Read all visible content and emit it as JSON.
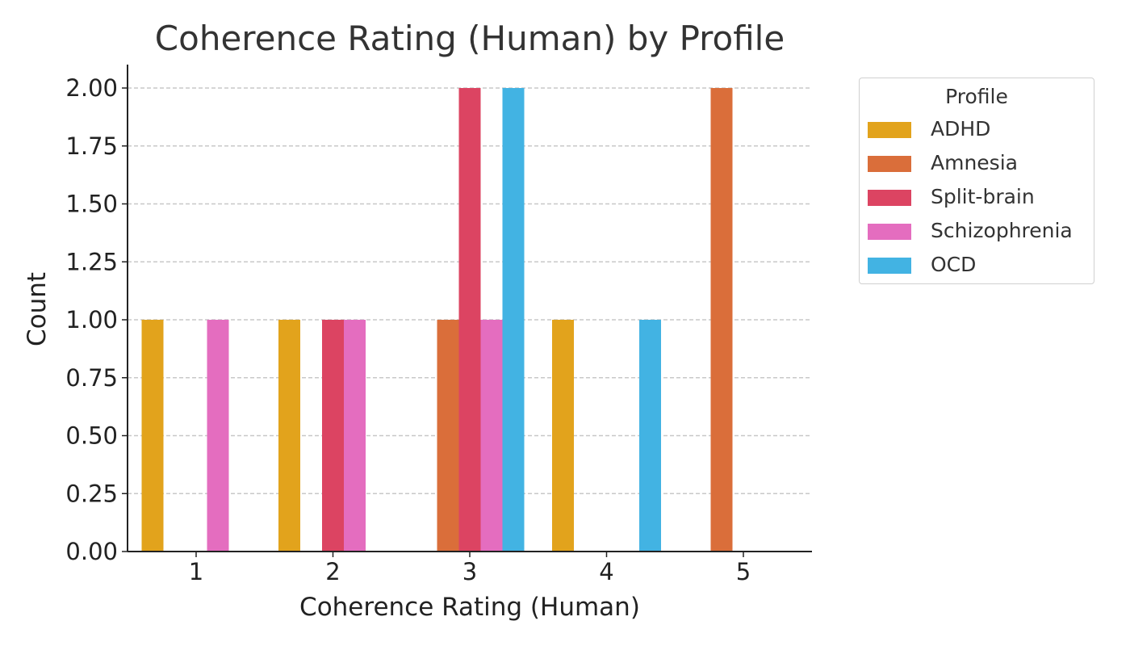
{
  "chart_data": {
    "type": "bar",
    "title": "Coherence Rating (Human) by Profile",
    "xlabel": "Coherence Rating (Human)",
    "ylabel": "Count",
    "categories": [
      "1",
      "2",
      "3",
      "4",
      "5"
    ],
    "ylim": [
      0,
      2.1
    ],
    "yticks": [
      "0.00",
      "0.25",
      "0.50",
      "0.75",
      "1.00",
      "1.25",
      "1.50",
      "1.75",
      "2.00"
    ],
    "grid": "horizontal dashed",
    "legend_title": "Profile",
    "legend_position": "outside-right",
    "series": [
      {
        "name": "ADHD",
        "color": "#E2A31C",
        "values": [
          1,
          1,
          0,
          1,
          0
        ]
      },
      {
        "name": "Amnesia",
        "color": "#DA6E3A",
        "values": [
          0,
          0,
          1,
          0,
          2
        ]
      },
      {
        "name": "Split-brain",
        "color": "#DC4462",
        "values": [
          0,
          1,
          2,
          0,
          0
        ]
      },
      {
        "name": "Schizophrenia",
        "color": "#E46DBF",
        "values": [
          1,
          1,
          1,
          0,
          0
        ]
      },
      {
        "name": "OCD",
        "color": "#42B3E3",
        "values": [
          0,
          0,
          2,
          1,
          0
        ]
      }
    ]
  }
}
